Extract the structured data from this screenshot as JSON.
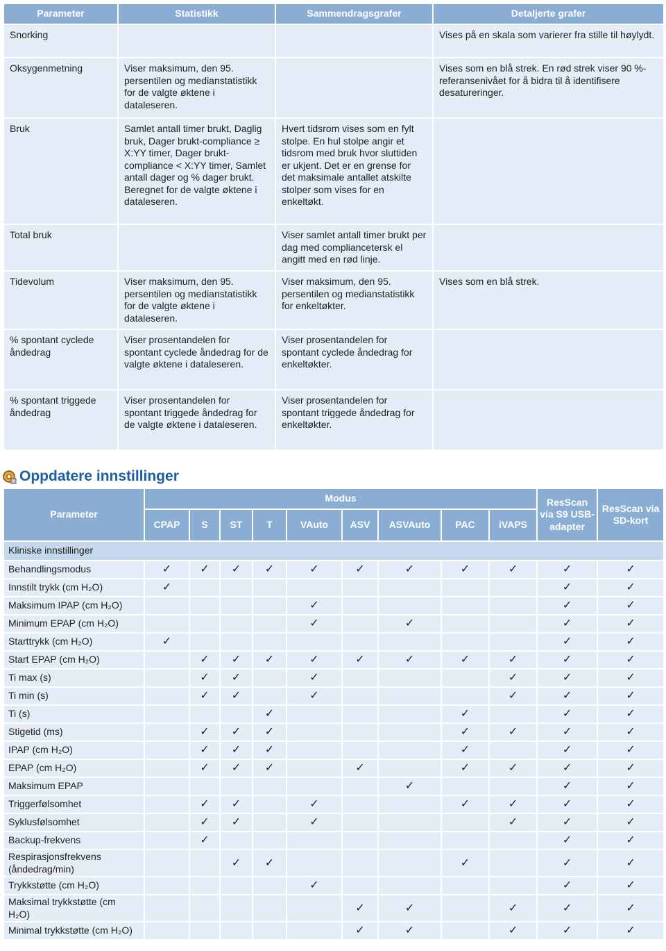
{
  "table1": {
    "header": [
      "Parameter",
      "Statistikk",
      "Sammendragsgrafer",
      "Detaljerte grafer"
    ],
    "rows": [
      [
        "Snorking",
        null,
        null,
        "Vises på en skala som varierer fra stille til høylydt."
      ],
      [
        "Oksygenmetning",
        "Viser maksimum, den 95. persentilen og medianstatistikk for de valgte øktene i dataleseren.",
        null,
        "Vises som en blå strek. En rød strek viser 90 %-referansenivået for å bidra til å identifisere desatureringer."
      ],
      [
        "Bruk",
        "Samlet antall timer brukt, Daglig bruk, Dager brukt-compliance ≥ X:YY timer, Dager brukt-compliance < X:YY timer, Samlet antall dager og % dager brukt. Beregnet for de valgte øktene i dataleseren.",
        "Hvert tidsrom vises som en fylt stolpe. En hul stolpe angir et tidsrom med bruk hvor sluttiden er ukjent. Det er en grense for det maksimale antallet atskilte stolper som vises for en enkeltøkt.",
        null
      ],
      [
        "Total bruk",
        null,
        "Viser samlet antall timer brukt per dag med compliancetersk el angitt med en rød linje.",
        null
      ],
      [
        "Tidevolum",
        "Viser maksimum, den 95. persentilen og medianstatistikk for de valgte øktene i dataleseren.",
        "Viser maksimum, den 95. persentilen og medianstatistikk for enkeltøkter.",
        "Vises som en blå strek."
      ],
      [
        "% spontant cyclede åndedrag",
        "Viser prosentandelen for spontant cyclede åndedrag for de valgte øktene i dataleseren.",
        "Viser prosentandelen for spontant cyclede åndedrag for enkeltøkter.",
        null
      ],
      [
        "% spontant triggede åndedrag",
        "Viser prosentandelen for spontant triggede åndedrag for de valgte øktene i dataleseren.",
        "Viser prosentandelen for spontant triggede åndedrag for enkeltøkter.",
        null
      ]
    ]
  },
  "section": {
    "title": "Oppdatere innstillinger"
  },
  "table2": {
    "header": {
      "parameter": "Parameter",
      "modus": "Modus",
      "modes": [
        "CPAP",
        "S",
        "ST",
        "T",
        "VAuto",
        "ASV",
        "ASVAuto",
        "PAC",
        "iVAPS"
      ],
      "resscan_usb": "ResScan via S9 USB-adapter",
      "resscan_sd": "ResScan via SD-kort"
    },
    "group": "Kliniske innstillinger",
    "rows": [
      {
        "label": "Behandlingsmodus",
        "checks": [
          "✓",
          "✓",
          "✓",
          "✓",
          "✓",
          "✓",
          "✓",
          "✓",
          "✓",
          "✓",
          "✓"
        ]
      },
      {
        "label": "Innstilt trykk (cm H₂O)",
        "checks": [
          "✓",
          null,
          null,
          null,
          null,
          null,
          null,
          null,
          null,
          "✓",
          "✓"
        ]
      },
      {
        "label": "Maksimum IPAP (cm H₂O)",
        "checks": [
          null,
          null,
          null,
          null,
          "✓",
          null,
          null,
          null,
          null,
          "✓",
          "✓"
        ]
      },
      {
        "label": "Minimum EPAP (cm H₂O)",
        "checks": [
          null,
          null,
          null,
          null,
          "✓",
          null,
          "✓",
          null,
          null,
          "✓",
          "✓"
        ]
      },
      {
        "label": "Starttrykk (cm H₂O)",
        "checks": [
          "✓",
          null,
          null,
          null,
          null,
          null,
          null,
          null,
          null,
          "✓",
          "✓"
        ]
      },
      {
        "label": "Start EPAP (cm H₂O)",
        "checks": [
          null,
          "✓",
          "✓",
          "✓",
          "✓",
          "✓",
          "✓",
          "✓",
          "✓",
          "✓",
          "✓"
        ]
      },
      {
        "label": "Ti max (s)",
        "checks": [
          null,
          "✓",
          "✓",
          null,
          "✓",
          null,
          null,
          null,
          "✓",
          "✓",
          "✓"
        ]
      },
      {
        "label": "Ti min (s)",
        "checks": [
          null,
          "✓",
          "✓",
          null,
          "✓",
          null,
          null,
          null,
          "✓",
          "✓",
          "✓"
        ]
      },
      {
        "label": "Ti (s)",
        "checks": [
          null,
          null,
          null,
          "✓",
          null,
          null,
          null,
          "✓",
          null,
          "✓",
          "✓"
        ]
      },
      {
        "label": "Stigetid (ms)",
        "checks": [
          null,
          "✓",
          "✓",
          "✓",
          null,
          null,
          null,
          "✓",
          "✓",
          "✓",
          "✓"
        ]
      },
      {
        "label": "IPAP (cm H₂O)",
        "checks": [
          null,
          "✓",
          "✓",
          "✓",
          null,
          null,
          null,
          "✓",
          null,
          "✓",
          "✓"
        ]
      },
      {
        "label": "EPAP (cm H₂O)",
        "checks": [
          null,
          "✓",
          "✓",
          "✓",
          null,
          "✓",
          null,
          "✓",
          "✓",
          "✓",
          "✓"
        ]
      },
      {
        "label": "Maksimum EPAP",
        "checks": [
          null,
          null,
          null,
          null,
          null,
          null,
          "✓",
          null,
          null,
          "✓",
          "✓"
        ]
      },
      {
        "label": "Triggerfølsomhet",
        "checks": [
          null,
          "✓",
          "✓",
          null,
          "✓",
          null,
          null,
          "✓",
          "✓",
          "✓",
          "✓"
        ]
      },
      {
        "label": "Syklusfølsomhet",
        "checks": [
          null,
          "✓",
          "✓",
          null,
          "✓",
          null,
          null,
          null,
          "✓",
          "✓",
          "✓"
        ]
      },
      {
        "label": "Backup-frekvens",
        "checks": [
          null,
          "✓",
          null,
          null,
          null,
          null,
          null,
          null,
          null,
          "✓",
          "✓"
        ]
      },
      {
        "label": "Respirasjonsfrekvens (åndedrag/min)",
        "checks": [
          null,
          null,
          "✓",
          "✓",
          null,
          null,
          null,
          "✓",
          null,
          "✓",
          "✓"
        ]
      },
      {
        "label": "Trykkstøtte (cm H₂O)",
        "checks": [
          null,
          null,
          null,
          null,
          "✓",
          null,
          null,
          null,
          null,
          "✓",
          "✓"
        ]
      },
      {
        "label": "Maksimal trykkstøtte (cm H₂O)",
        "checks": [
          null,
          null,
          null,
          null,
          null,
          "✓",
          "✓",
          null,
          "✓",
          "✓",
          "✓"
        ]
      },
      {
        "label": "Minimal trykkstøtte (cm H₂O)",
        "checks": [
          null,
          null,
          null,
          null,
          null,
          "✓",
          "✓",
          null,
          "✓",
          "✓",
          "✓"
        ]
      }
    ]
  }
}
